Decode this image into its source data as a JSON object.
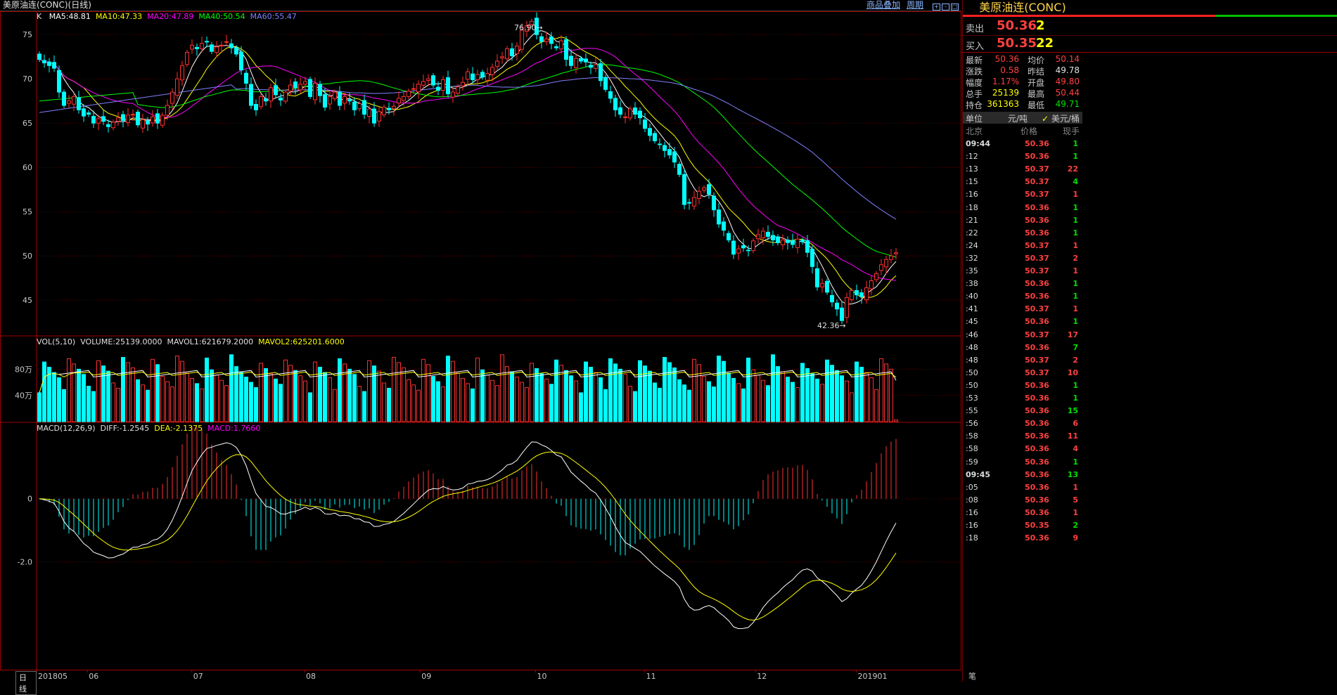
{
  "window": {
    "title": "美原油连(CONC)(日线)",
    "link_overlay": "商品叠加",
    "link_period": "周期"
  },
  "indicators": {
    "k_label": "K",
    "ma5": "MA5:48.81",
    "ma10": "MA10:47.33",
    "ma20": "MA20:47.89",
    "ma40": "MA40:50.54",
    "ma60": "MA60:55.47",
    "price_high_note": "76.90",
    "price_low_note": "42.36",
    "vol_label": "VOL(5,10)",
    "volume": "VOLUME:25139.0000",
    "mavol1": "MAVOL1:621679.2000",
    "mavol2": "MAVOL2:625201.6000",
    "macd_label": "MACD(12,26,9)",
    "diff": "DIFF:-1.2545",
    "dea": "DEA:-2.1375",
    "macd": "MACD:1.7660"
  },
  "price_axis": [
    "75",
    "70",
    "65",
    "60",
    "55",
    "50",
    "45"
  ],
  "vol_axis": [
    "80万",
    "40万"
  ],
  "macd_axis": [
    "0",
    "-2.0"
  ],
  "x_axis": [
    "201805",
    "06",
    "07",
    "08",
    "09",
    "10",
    "11",
    "12",
    "201901"
  ],
  "bottom_tab": "日线",
  "right_tab": "笔",
  "panel": {
    "title": "美原油连(CONC)",
    "sell_label": "卖出",
    "sell_price": "50.36",
    "sell_qty": "2",
    "buy_label": "买入",
    "buy_price": "50.35",
    "buy_qty": "22",
    "stats": [
      {
        "k1": "最新",
        "v1": "50.36",
        "k2": "均价",
        "v2": "50.14"
      },
      {
        "k1": "涨跌",
        "v1": "0.58",
        "k2": "昨结",
        "v2": "49.78"
      },
      {
        "k1": "幅度",
        "v1": "1.17%",
        "k2": "开盘",
        "v2": "49.80"
      },
      {
        "k1": "总手",
        "v1": "25139",
        "k2": "最高",
        "v2": "50.44"
      },
      {
        "k1": "持仓",
        "v1": "361363",
        "k2": "最低",
        "v2": "49.71"
      }
    ],
    "unit_label": "单位",
    "unit_cny": "元/吨",
    "unit_usd": "美元/桶",
    "col_time": "北京",
    "col_price": "价格",
    "col_qty": "现手",
    "ticks": [
      {
        "t": "09:44",
        "p": "50.36",
        "q": "1",
        "pc": "red",
        "qc": "grn",
        "bold": true
      },
      {
        "t": ":12",
        "p": "50.36",
        "q": "1",
        "pc": "red",
        "qc": "grn"
      },
      {
        "t": ":13",
        "p": "50.37",
        "q": "22",
        "pc": "red",
        "qc": "red"
      },
      {
        "t": ":15",
        "p": "50.37",
        "q": "4",
        "pc": "red",
        "qc": "grn"
      },
      {
        "t": ":16",
        "p": "50.37",
        "q": "1",
        "pc": "red",
        "qc": "red"
      },
      {
        "t": ":18",
        "p": "50.36",
        "q": "1",
        "pc": "red",
        "qc": "grn"
      },
      {
        "t": ":21",
        "p": "50.36",
        "q": "1",
        "pc": "red",
        "qc": "grn"
      },
      {
        "t": ":22",
        "p": "50.36",
        "q": "1",
        "pc": "red",
        "qc": "grn"
      },
      {
        "t": ":24",
        "p": "50.37",
        "q": "1",
        "pc": "red",
        "qc": "red"
      },
      {
        "t": ":32",
        "p": "50.37",
        "q": "2",
        "pc": "red",
        "qc": "red"
      },
      {
        "t": ":35",
        "p": "50.37",
        "q": "1",
        "pc": "red",
        "qc": "red"
      },
      {
        "t": ":38",
        "p": "50.36",
        "q": "1",
        "pc": "red",
        "qc": "grn"
      },
      {
        "t": ":40",
        "p": "50.36",
        "q": "1",
        "pc": "red",
        "qc": "grn"
      },
      {
        "t": ":41",
        "p": "50.37",
        "q": "1",
        "pc": "red",
        "qc": "red"
      },
      {
        "t": ":45",
        "p": "50.36",
        "q": "1",
        "pc": "red",
        "qc": "grn"
      },
      {
        "t": ":46",
        "p": "50.37",
        "q": "17",
        "pc": "red",
        "qc": "red"
      },
      {
        "t": ":48",
        "p": "50.36",
        "q": "7",
        "pc": "red",
        "qc": "grn"
      },
      {
        "t": ":48",
        "p": "50.37",
        "q": "2",
        "pc": "red",
        "qc": "red"
      },
      {
        "t": ":50",
        "p": "50.37",
        "q": "10",
        "pc": "red",
        "qc": "red"
      },
      {
        "t": ":50",
        "p": "50.36",
        "q": "1",
        "pc": "red",
        "qc": "grn"
      },
      {
        "t": ":53",
        "p": "50.36",
        "q": "1",
        "pc": "red",
        "qc": "grn"
      },
      {
        "t": ":55",
        "p": "50.36",
        "q": "15",
        "pc": "red",
        "qc": "grn"
      },
      {
        "t": ":56",
        "p": "50.36",
        "q": "6",
        "pc": "red",
        "qc": "red"
      },
      {
        "t": ":58",
        "p": "50.36",
        "q": "11",
        "pc": "red",
        "qc": "red"
      },
      {
        "t": ":58",
        "p": "50.36",
        "q": "4",
        "pc": "red",
        "qc": "red"
      },
      {
        "t": ":59",
        "p": "50.36",
        "q": "1",
        "pc": "red",
        "qc": "grn"
      },
      {
        "t": "09:45",
        "p": "50.36",
        "q": "13",
        "pc": "red",
        "qc": "grn",
        "bold": true
      },
      {
        "t": ":05",
        "p": "50.36",
        "q": "1",
        "pc": "red",
        "qc": "red"
      },
      {
        "t": ":08",
        "p": "50.36",
        "q": "5",
        "pc": "red",
        "qc": "red"
      },
      {
        "t": ":16",
        "p": "50.36",
        "q": "1",
        "pc": "red",
        "qc": "red"
      },
      {
        "t": ":16",
        "p": "50.35",
        "q": "2",
        "pc": "red",
        "qc": "grn"
      },
      {
        "t": ":18",
        "p": "50.36",
        "q": "9",
        "pc": "red",
        "qc": "red"
      }
    ]
  },
  "colors": {
    "up": "#ff3030",
    "down": "#00ffff",
    "ma5": "#ffffff",
    "ma10": "#ffff00",
    "ma20": "#ff00ff",
    "ma40": "#00ff00",
    "ma60": "#8080ff"
  },
  "chart_data": {
    "type": "candlestick",
    "price_ylim": [
      42,
      77
    ],
    "closes": [
      72.2,
      71.8,
      71.5,
      71.2,
      68.5,
      67.0,
      67.5,
      68.0,
      66.5,
      65.8,
      66.0,
      65.0,
      65.5,
      65.2,
      64.6,
      65.1,
      65.6,
      65.3,
      65.9,
      66.0,
      64.8,
      65.4,
      64.9,
      65.7,
      65.0,
      65.9,
      67.0,
      68.5,
      70.0,
      71.5,
      73.0,
      73.8,
      73.4,
      74.0,
      74.2,
      73.1,
      73.6,
      73.8,
      74.2,
      73.5,
      72.8,
      71.0,
      69.5,
      67.0,
      66.5,
      68.0,
      67.5,
      69.0,
      68.2,
      67.6,
      68.5,
      69.3,
      69.0,
      69.4,
      69.7,
      68.0,
      69.5,
      68.1,
      66.8,
      68.0,
      68.5,
      67.0,
      68.0,
      67.5,
      66.5,
      67.2,
      66.0,
      66.6,
      65.0,
      66.3,
      66.8,
      66.5,
      66.9,
      67.8,
      68.0,
      68.6,
      68.9,
      69.4,
      69.7,
      70.0,
      69.3,
      68.7,
      69.9,
      68.3,
      68.5,
      69.1,
      69.6,
      70.8,
      69.9,
      70.5,
      70.2,
      70.6,
      71.3,
      72.0,
      72.5,
      73.4,
      72.6,
      73.7,
      75.5,
      76.0,
      76.5,
      75.0,
      74.2,
      74.5,
      74.0,
      73.5,
      74.3,
      72.2,
      71.5,
      72.3,
      72.0,
      71.9,
      71.3,
      71.6,
      69.8,
      68.8,
      67.8,
      66.5,
      66.0,
      65.7,
      66.6,
      66.0,
      65.6,
      64.4,
      63.6,
      63.0,
      62.6,
      61.9,
      61.4,
      60.6,
      59.2,
      55.8,
      56.0,
      56.6,
      57.3,
      57.7,
      57.0,
      55.2,
      53.6,
      52.9,
      51.8,
      50.2,
      50.8,
      50.9,
      50.6,
      51.7,
      52.4,
      52.8,
      52.2,
      51.8,
      51.5,
      51.8,
      51.5,
      51.3,
      51.9,
      51.6,
      50.4,
      48.8,
      46.5,
      46.9,
      45.9,
      44.8,
      44.0,
      42.7,
      45.3,
      46.1,
      45.6,
      45.4,
      46.4,
      47.2,
      48.0,
      49.0,
      49.6,
      50.0,
      50.36
    ],
    "ma5": [],
    "ma60_end": 55.47,
    "volume_ylim": [
      0,
      1200000
    ],
    "volume_note": "Volume bars are alternating up/down colored; MAVOL1 621679.2 and MAVOL2 625201.6",
    "macd_ylim": [
      -5.2,
      2.2
    ],
    "diff_last": -1.2545,
    "dea_last": -2.1375,
    "macd_last": 1.766
  }
}
